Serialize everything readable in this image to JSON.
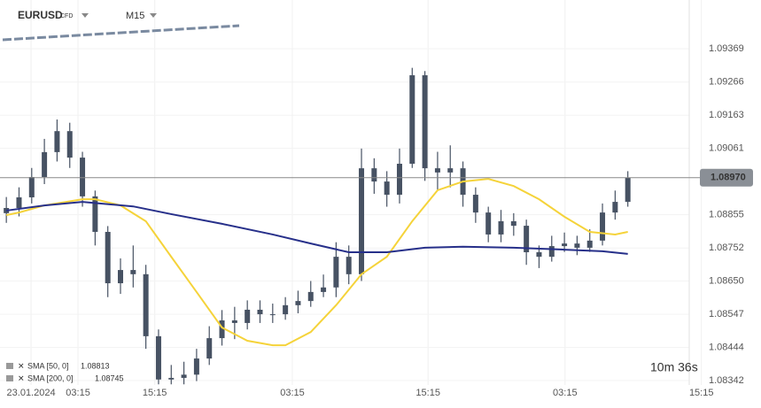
{
  "chart_data": {
    "type": "candlestick",
    "symbol": "EURUSD",
    "instrument_type": "CFD",
    "timeframe": "M15",
    "countdown": "10m 36s",
    "xlim": [
      0,
      120
    ],
    "ylim": [
      1.08328,
      1.0952
    ],
    "xticks": [
      {
        "value": 4.9,
        "label": "23.01.2024"
      },
      {
        "value": 12.3,
        "label": "03:15"
      },
      {
        "value": 24.4,
        "label": "15:15"
      },
      {
        "value": 46.1,
        "label": "03:15"
      },
      {
        "value": 67.5,
        "label": "15:15"
      },
      {
        "value": 89.1,
        "label": "03:15"
      },
      {
        "value": 110.6,
        "label": "15:15"
      }
    ],
    "yticks": [
      {
        "value": 1.09369,
        "label": "1.09369"
      },
      {
        "value": 1.09266,
        "label": "1.09266"
      },
      {
        "value": 1.09163,
        "label": "1.09163"
      },
      {
        "value": 1.09061,
        "label": "1.09061"
      },
      {
        "value": 1.08855,
        "label": "1.08855"
      },
      {
        "value": 1.08752,
        "label": "1.08752"
      },
      {
        "value": 1.0865,
        "label": "1.08650"
      },
      {
        "value": 1.08547,
        "label": "1.08547"
      },
      {
        "value": 1.08444,
        "label": "1.08444"
      },
      {
        "value": 1.08342,
        "label": "1.08342"
      }
    ],
    "grid": true,
    "last_price": {
      "value": 1.0897,
      "label": "1.08970"
    },
    "color": "#475263",
    "candles": {
      "x": [
        1,
        3,
        5,
        7,
        9,
        11,
        13,
        15,
        17,
        19,
        21,
        23,
        25,
        27,
        29,
        31,
        33,
        35,
        37,
        39,
        41,
        43,
        45,
        47,
        49,
        51,
        53,
        55,
        57,
        59,
        61,
        63,
        65,
        67,
        69,
        71,
        73,
        75,
        77,
        79,
        81,
        83,
        85,
        87,
        89,
        91,
        93,
        95,
        97,
        99
      ],
      "open": [
        1.0886,
        1.08876,
        1.08909,
        1.08972,
        1.09049,
        1.09114,
        1.09032,
        1.08912,
        1.08802,
        1.08643,
        1.08684,
        1.08671,
        1.08479,
        1.08345,
        1.0835,
        1.0836,
        1.0841,
        1.08473,
        1.08528,
        1.0852,
        1.08561,
        1.08547,
        1.08547,
        1.08575,
        1.08588,
        1.08616,
        1.0863,
        1.08725,
        1.08671,
        1.08999,
        1.08958,
        1.08917,
        1.09013,
        1.09287,
        1.08999,
        1.08986,
        1.08999,
        1.08917,
        1.08862,
        1.08794,
        1.08835,
        1.08821,
        1.08739,
        1.08725,
        1.08758,
        1.08766,
        1.08753,
        1.08775,
        1.08862,
        1.08895
      ],
      "high": [
        1.0891,
        1.0894,
        1.09,
        1.0909,
        1.0915,
        1.0914,
        1.0905,
        1.0893,
        1.0882,
        1.0872,
        1.0876,
        1.087,
        1.085,
        1.0839,
        1.084,
        1.0844,
        1.0851,
        1.0856,
        1.0857,
        1.0859,
        1.0859,
        1.0858,
        1.086,
        1.0862,
        1.0865,
        1.0867,
        1.0877,
        1.0876,
        1.0906,
        1.0903,
        1.0899,
        1.0906,
        1.0931,
        1.093,
        1.0905,
        1.0907,
        1.0902,
        1.0894,
        1.0888,
        1.0887,
        1.0886,
        1.0884,
        1.0876,
        1.0879,
        1.088,
        1.0879,
        1.0881,
        1.0889,
        1.0893,
        1.0899
      ],
      "low": [
        1.0883,
        1.0885,
        1.0889,
        1.0895,
        1.0902,
        1.09,
        1.0888,
        1.0876,
        1.086,
        1.0861,
        1.0863,
        1.0844,
        1.0833,
        1.0833,
        1.0833,
        1.0834,
        1.0839,
        1.0845,
        1.0847,
        1.085,
        1.0852,
        1.0852,
        1.0853,
        1.0855,
        1.0857,
        1.086,
        1.086,
        1.0864,
        1.0865,
        1.0892,
        1.0888,
        1.0889,
        1.09,
        1.0896,
        1.0893,
        1.0894,
        1.0888,
        1.0883,
        1.0877,
        1.0877,
        1.0879,
        1.087,
        1.0869,
        1.0871,
        1.0874,
        1.0873,
        1.0874,
        1.0876,
        1.0884,
        1.0888
      ],
      "close": [
        1.08876,
        1.08909,
        1.08972,
        1.09049,
        1.09114,
        1.09032,
        1.08912,
        1.08802,
        1.08643,
        1.08684,
        1.08671,
        1.08479,
        1.08345,
        1.0835,
        1.0836,
        1.0841,
        1.08473,
        1.08528,
        1.0852,
        1.08561,
        1.08547,
        1.08547,
        1.08575,
        1.08588,
        1.08616,
        1.0863,
        1.08725,
        1.08671,
        1.08999,
        1.08958,
        1.08917,
        1.09013,
        1.09287,
        1.08999,
        1.08986,
        1.08999,
        1.08917,
        1.08862,
        1.08794,
        1.08835,
        1.08821,
        1.08739,
        1.08725,
        1.08758,
        1.08766,
        1.08753,
        1.08775,
        1.08862,
        1.08895,
        1.0897
      ]
    },
    "indicators": [
      {
        "name": "SMA [50, 0]",
        "value": 1.08813,
        "color": "#f5d33a",
        "x": [
          1,
          3,
          7,
          13,
          15,
          19,
          23,
          27,
          31,
          35,
          39,
          43,
          45,
          49,
          53,
          57,
          61,
          65,
          69,
          73,
          77,
          81,
          85,
          89,
          93,
          97,
          99
        ],
        "values": [
          1.08854,
          1.08862,
          1.08884,
          1.08903,
          1.08903,
          1.08884,
          1.08835,
          1.08725,
          1.08616,
          1.08506,
          1.08465,
          1.08451,
          1.08451,
          1.08492,
          1.08575,
          1.08671,
          1.08725,
          1.08835,
          1.08931,
          1.08958,
          1.08966,
          1.08944,
          1.08903,
          1.08849,
          1.08802,
          1.08794,
          1.08802
        ]
      },
      {
        "name": "SMA [200, 0]",
        "value": 1.08745,
        "color": "#27308a",
        "x": [
          1,
          7,
          13,
          21,
          27,
          35,
          43,
          49,
          55,
          61,
          67,
          73,
          81,
          89,
          95,
          99
        ],
        "values": [
          1.08868,
          1.08884,
          1.08895,
          1.08881,
          1.08857,
          1.08827,
          1.08794,
          1.08766,
          1.08739,
          1.08739,
          1.08753,
          1.08756,
          1.08753,
          1.08747,
          1.08742,
          1.08734
        ]
      }
    ]
  }
}
